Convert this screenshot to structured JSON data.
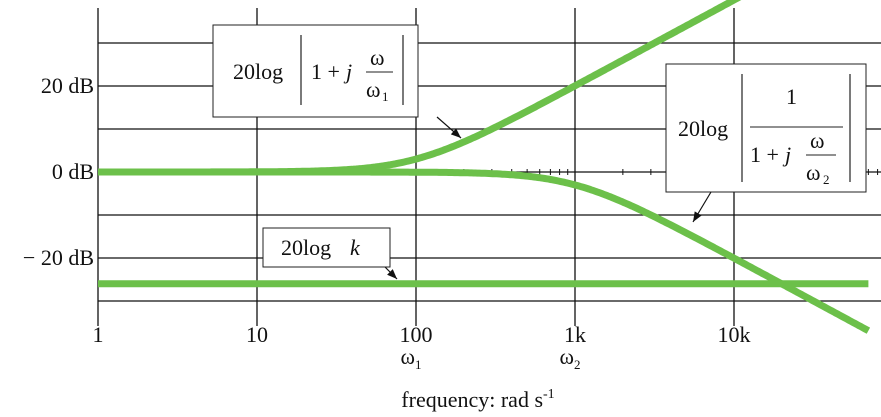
{
  "chart_data": {
    "type": "line",
    "xscale": "log",
    "x_ticks": [
      {
        "value": 1,
        "label": "1",
        "sublabel": ""
      },
      {
        "value": 10,
        "label": "10",
        "sublabel": ""
      },
      {
        "value": 100,
        "label": "100",
        "sublabel": "ω1"
      },
      {
        "value": 1000,
        "label": "1k",
        "sublabel": "ω2"
      },
      {
        "value": 10000,
        "label": "10k",
        "sublabel": ""
      }
    ],
    "y_ticks": [
      {
        "value": 20,
        "label": "20 dB"
      },
      {
        "value": 0,
        "label": "0 dB"
      },
      {
        "value": -20,
        "label": "− 20 dB"
      }
    ],
    "xlim": [
      1,
      70000
    ],
    "ylim": [
      -35,
      38
    ],
    "xlabel": "frequency: rad s-1",
    "grid": true,
    "params": {
      "omega1": 100,
      "omega2": 1000,
      "k_db": -26
    },
    "series": [
      {
        "id": "zero",
        "label_text": "20log|1 + jω/ω1|",
        "formula": "20log|1+jw/w1|",
        "color": "#6cc04a"
      },
      {
        "id": "pole",
        "label_text": "20log|1/(1 + jω/ω2)|",
        "formula": "20log|1/(1+jw/w2)|",
        "color": "#6cc04a"
      },
      {
        "id": "gain",
        "label_text": "20logk",
        "formula": "20log k",
        "color": "#6cc04a"
      }
    ]
  },
  "annotations": {
    "zero_box": {
      "prefix": "20log",
      "one": "1 + ",
      "j": "j",
      "num": "ω",
      "den": "ω",
      "den_sub": "1"
    },
    "pole_box": {
      "prefix": "20log",
      "num": "1",
      "one": "1 + ",
      "j": "j",
      "inner_num": "ω",
      "inner_den": "ω",
      "inner_den_sub": "2"
    },
    "gain_box": {
      "prefix": "20log",
      "k": "k"
    }
  }
}
